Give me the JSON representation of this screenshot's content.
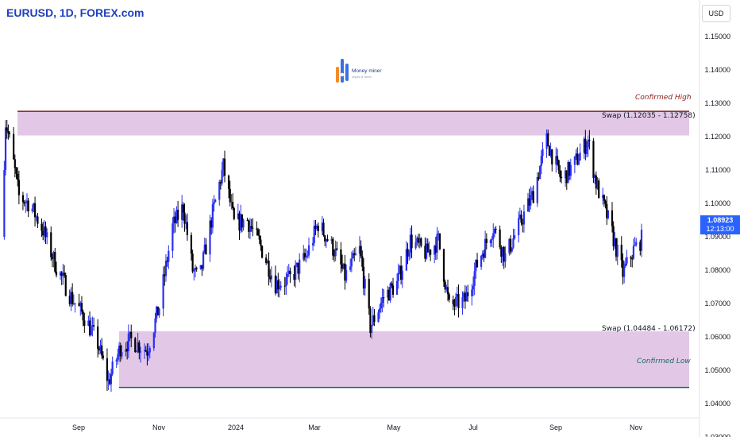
{
  "header": {
    "symbol_title": "EURUSD, 1D, FOREX.com"
  },
  "toolbar": {
    "currency": "USD"
  },
  "logo": {
    "name": "Money miner",
    "tagline": "crypto & forex"
  },
  "annotations": {
    "confirmed_high": "Confirmed High",
    "confirmed_low": "Confirmed Low",
    "swap_upper": "Swap (1.12035 - 1.12758)",
    "swap_lower": "Swap (1.04484 - 1.06172)"
  },
  "last_price": {
    "value": "1.08923",
    "countdown": "12:13:00"
  },
  "colors": {
    "up_candle": "#2a2ff2",
    "down_candle": "#000000",
    "zone_fill": "#e2c8e6",
    "high_line": "#8b1a1a",
    "low_line": "#1b6b5a",
    "price_tag": "#2962ff"
  },
  "chart_data": {
    "type": "candlestick",
    "symbol": "EURUSD",
    "timeframe": "1D",
    "y_axis": {
      "min": 1.025,
      "max": 1.16,
      "ticks": [
        "1.15000",
        "1.14000",
        "1.13000",
        "1.12000",
        "1.11000",
        "1.10000",
        "1.09000",
        "1.08000",
        "1.07000",
        "1.06000",
        "1.05000",
        "1.04000",
        "1.03000"
      ]
    },
    "x_axis": {
      "ticks": [
        "Sep",
        "Nov",
        "2024",
        "Mar",
        "May",
        "Jul",
        "Sep",
        "Nov"
      ]
    },
    "zones": [
      {
        "label": "Swap (1.12035 - 1.12758)",
        "low": 1.12035,
        "high": 1.12758,
        "edge_label": "Confirmed High"
      },
      {
        "label": "Swap (1.04484 - 1.06172)",
        "low": 1.04484,
        "high": 1.06172,
        "edge_label": "Confirmed Low"
      }
    ],
    "close_path": [
      [
        "2023-07-15",
        1.09
      ],
      [
        "2023-07-18",
        1.1245
      ],
      [
        "2023-07-22",
        1.117
      ],
      [
        "2023-07-28",
        1.102
      ],
      [
        "2023-08-05",
        1.1
      ],
      [
        "2023-08-15",
        1.092
      ],
      [
        "2023-08-25",
        1.081
      ],
      [
        "2023-09-05",
        1.072
      ],
      [
        "2023-09-15",
        1.066
      ],
      [
        "2023-09-25",
        1.058
      ],
      [
        "2023-10-03",
        1.0465
      ],
      [
        "2023-10-12",
        1.057
      ],
      [
        "2023-10-20",
        1.059
      ],
      [
        "2023-11-01",
        1.056
      ],
      [
        "2023-11-10",
        1.069
      ],
      [
        "2023-11-20",
        1.093
      ],
      [
        "2023-11-28",
        1.099
      ],
      [
        "2023-12-05",
        1.08
      ],
      [
        "2023-12-10",
        1.077
      ],
      [
        "2023-12-20",
        1.097
      ],
      [
        "2023-12-28",
        1.111
      ],
      [
        "2024-01-05",
        1.094
      ],
      [
        "2024-01-15",
        1.095
      ],
      [
        "2024-01-25",
        1.087
      ],
      [
        "2024-02-05",
        1.076
      ],
      [
        "2024-02-15",
        1.077
      ],
      [
        "2024-02-28",
        1.084
      ],
      [
        "2024-03-08",
        1.094
      ],
      [
        "2024-03-20",
        1.086
      ],
      [
        "2024-03-28",
        1.078
      ],
      [
        "2024-04-08",
        1.086
      ],
      [
        "2024-04-16",
        1.063
      ],
      [
        "2024-04-26",
        1.072
      ],
      [
        "2024-05-06",
        1.076
      ],
      [
        "2024-05-16",
        1.089
      ],
      [
        "2024-05-28",
        1.085
      ],
      [
        "2024-06-06",
        1.089
      ],
      [
        "2024-06-14",
        1.069
      ],
      [
        "2024-06-26",
        1.071
      ],
      [
        "2024-07-06",
        1.083
      ],
      [
        "2024-07-17",
        1.093
      ],
      [
        "2024-07-26",
        1.084
      ],
      [
        "2024-08-06",
        1.094
      ],
      [
        "2024-08-16",
        1.103
      ],
      [
        "2024-08-26",
        1.119
      ],
      [
        "2024-09-06",
        1.107
      ],
      [
        "2024-09-16",
        1.112
      ],
      [
        "2024-09-26",
        1.119
      ],
      [
        "2024-10-02",
        1.106
      ],
      [
        "2024-10-12",
        1.094
      ],
      [
        "2024-10-22",
        1.079
      ],
      [
        "2024-10-30",
        1.086
      ],
      [
        "2024-11-05",
        1.0892
      ]
    ]
  }
}
